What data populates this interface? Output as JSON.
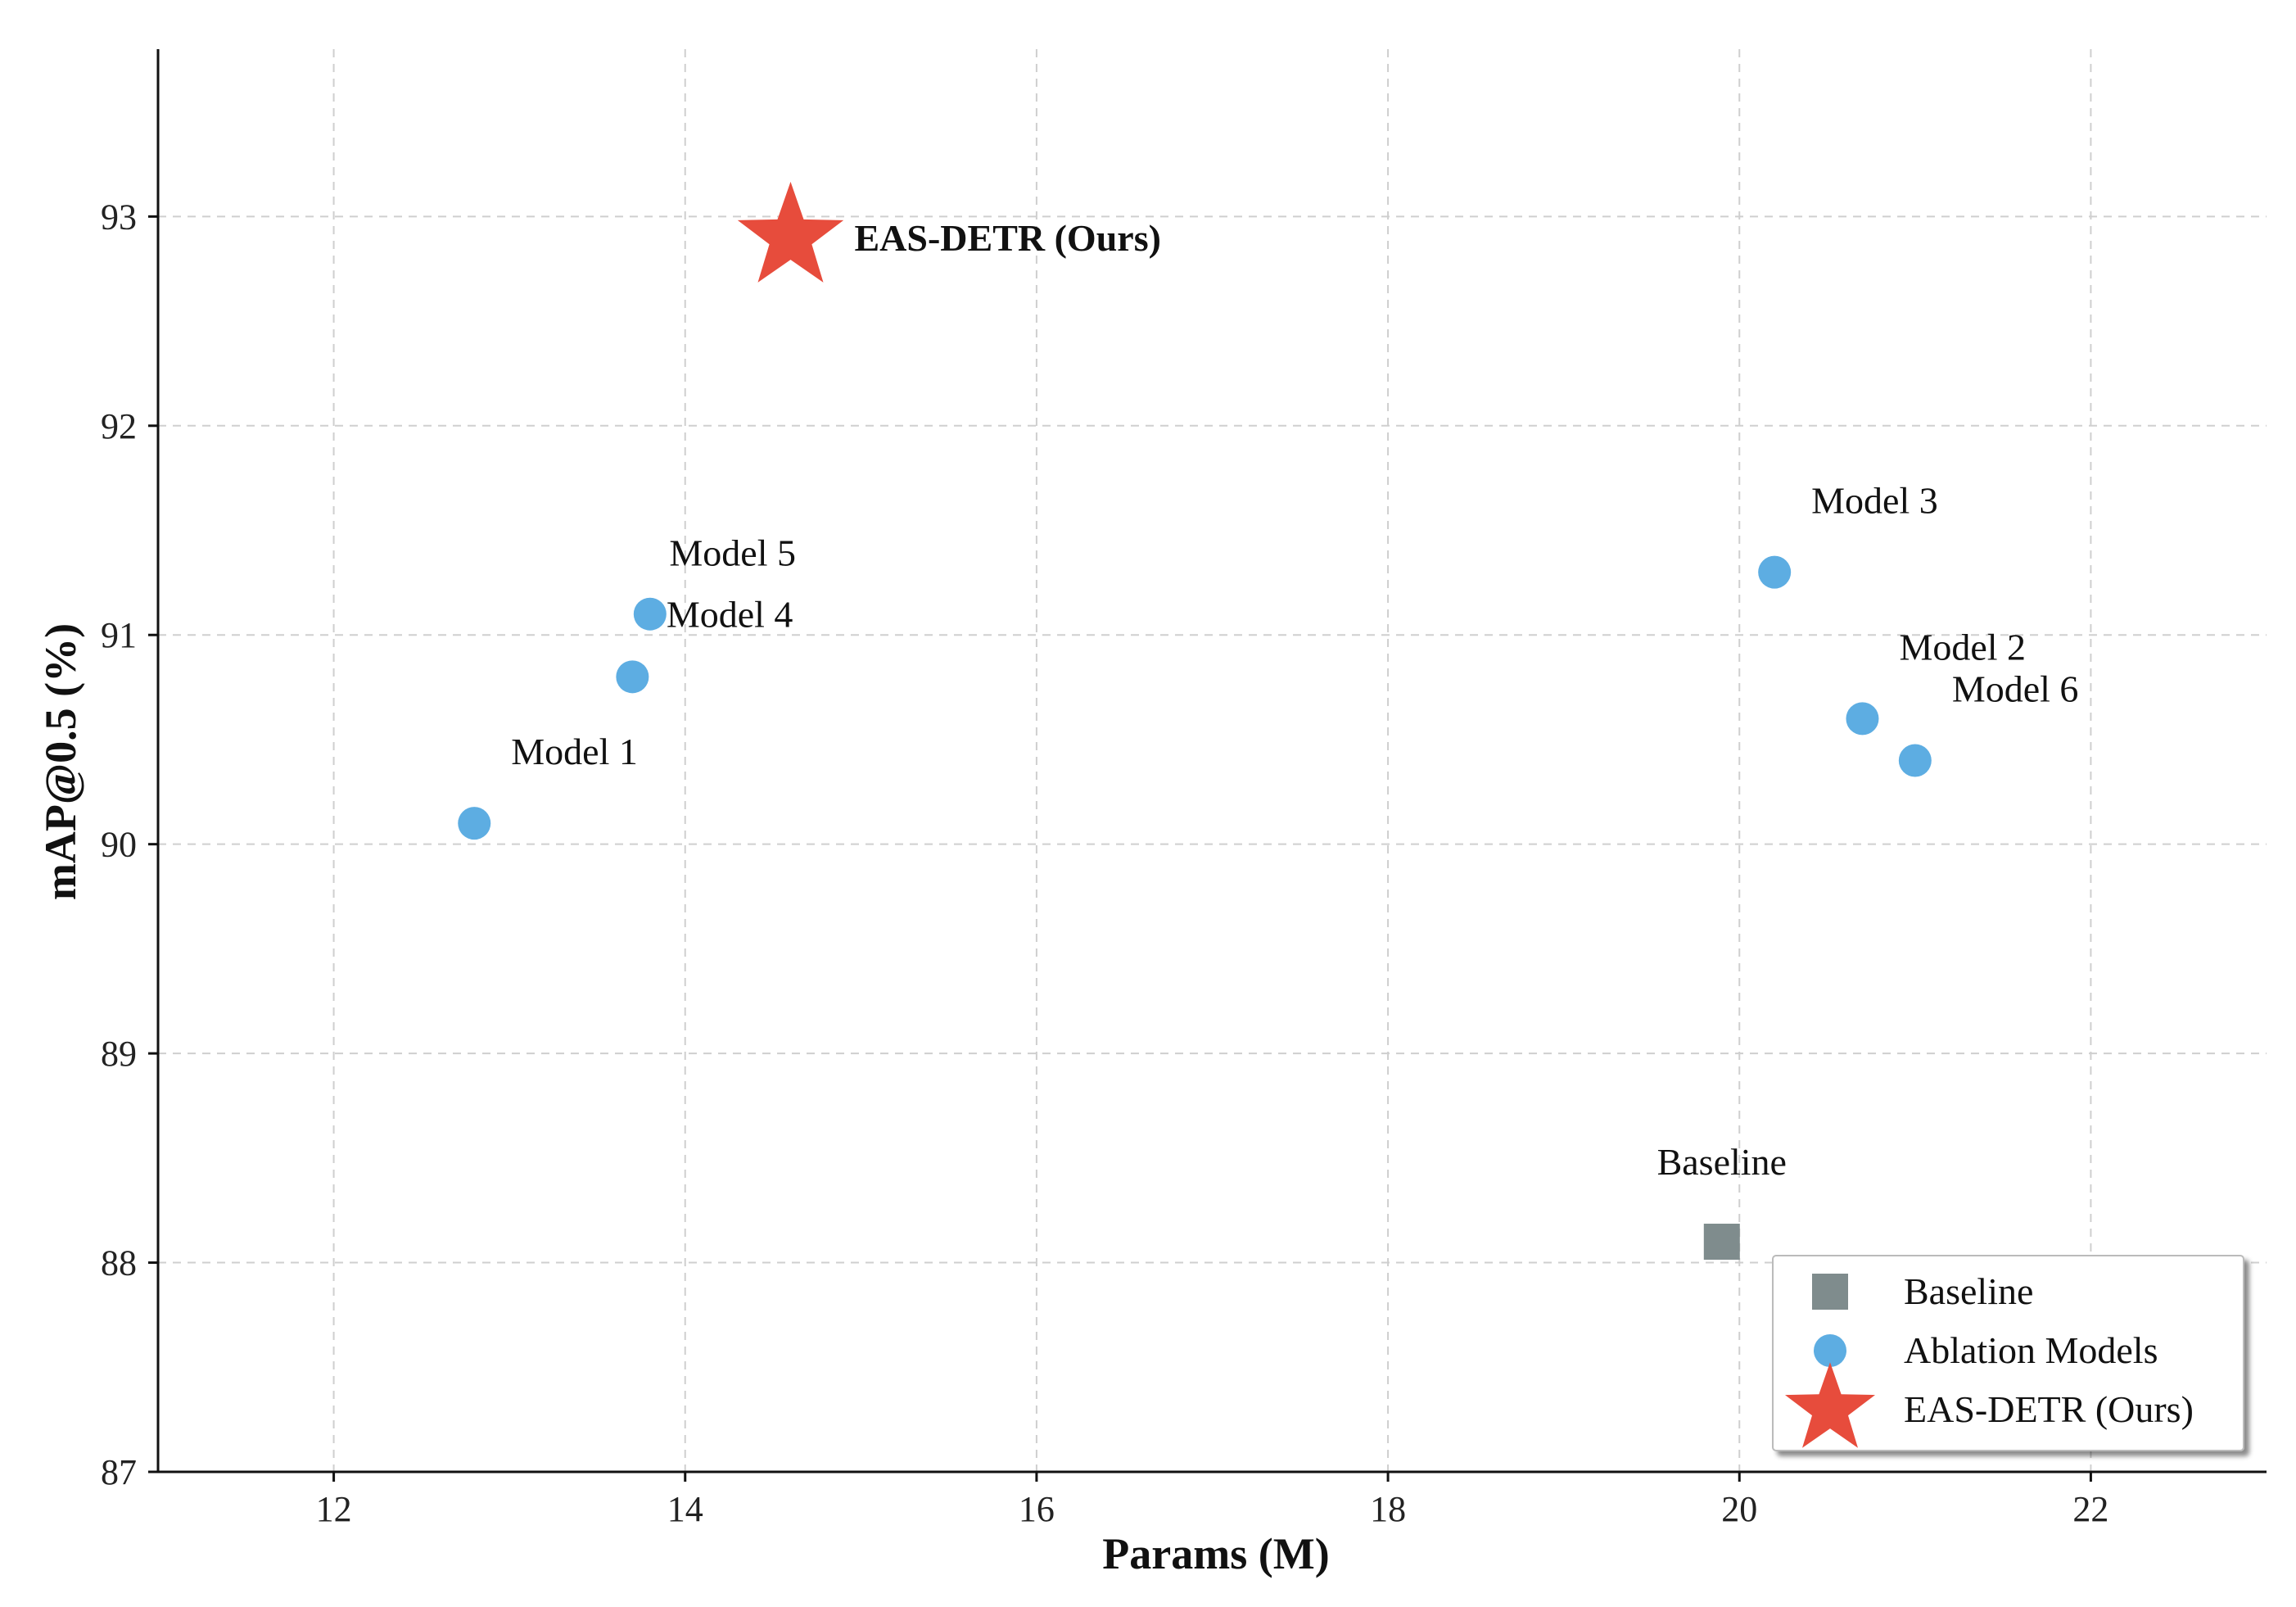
{
  "chart_data": {
    "type": "scatter",
    "title": "",
    "xlabel": "Params (M)",
    "ylabel": "mAP@0.5 (%)",
    "xlim": [
      11,
      23
    ],
    "ylim": [
      87,
      93.8
    ],
    "xticks": [
      12,
      14,
      16,
      18,
      20,
      22
    ],
    "yticks": [
      87,
      88,
      89,
      90,
      91,
      92,
      93
    ],
    "grid": true,
    "legend_position": "bottom-right",
    "series": [
      {
        "name": "Baseline",
        "marker": "square",
        "color": "#7f8c8d",
        "points": [
          {
            "label": "Baseline",
            "x": 19.9,
            "y": 88.1
          }
        ]
      },
      {
        "name": "Ablation Models",
        "marker": "circle",
        "color": "#5dade2",
        "points": [
          {
            "label": "Model 1",
            "x": 12.8,
            "y": 90.1
          },
          {
            "label": "Model 2",
            "x": 20.7,
            "y": 90.6
          },
          {
            "label": "Model 3",
            "x": 20.2,
            "y": 91.3
          },
          {
            "label": "Model 4",
            "x": 13.8,
            "y": 91.1
          },
          {
            "label": "Model 5",
            "x": 13.7,
            "y": 90.8
          },
          {
            "label": "Model 6",
            "x": 21.0,
            "y": 90.4
          }
        ]
      },
      {
        "name": "EAS-DETR (Ours)",
        "marker": "star",
        "color": "#e74c3c",
        "points": [
          {
            "label": "EAS-DETR (Ours)",
            "x": 14.6,
            "y": 92.9
          }
        ]
      }
    ]
  }
}
